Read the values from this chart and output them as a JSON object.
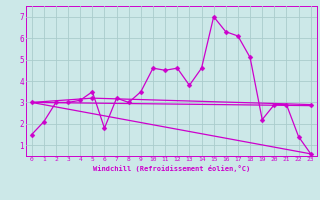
{
  "title": "",
  "xlabel": "Windchill (Refroidissement éolien,°C)",
  "background_color": "#cce8e8",
  "grid_color": "#aacccc",
  "line_color": "#cc00cc",
  "xlim": [
    -0.5,
    23.5
  ],
  "ylim": [
    0.5,
    7.5
  ],
  "xticks": [
    0,
    1,
    2,
    3,
    4,
    5,
    6,
    7,
    8,
    9,
    10,
    11,
    12,
    13,
    14,
    15,
    16,
    17,
    18,
    19,
    20,
    21,
    22,
    23
  ],
  "yticks": [
    1,
    2,
    3,
    4,
    5,
    6,
    7
  ],
  "series1_x": [
    0,
    1,
    2,
    3,
    4,
    5,
    6,
    7,
    8,
    9,
    10,
    11,
    12,
    13,
    14,
    15,
    16,
    17,
    18,
    19,
    20,
    21,
    22,
    23
  ],
  "series1_y": [
    1.5,
    2.1,
    3.0,
    3.0,
    3.1,
    3.5,
    1.8,
    3.2,
    3.0,
    3.5,
    4.6,
    4.5,
    4.6,
    3.8,
    4.6,
    7.0,
    6.3,
    6.1,
    5.1,
    2.2,
    2.9,
    2.9,
    1.4,
    0.6
  ],
  "series2_x": [
    0,
    5,
    23
  ],
  "series2_y": [
    3.0,
    3.2,
    2.9
  ],
  "series3_x": [
    0,
    23
  ],
  "series3_y": [
    3.0,
    2.85
  ],
  "series4_x": [
    0,
    23
  ],
  "series4_y": [
    3.0,
    0.6
  ],
  "marker_size": 2.5,
  "linewidth": 0.9
}
